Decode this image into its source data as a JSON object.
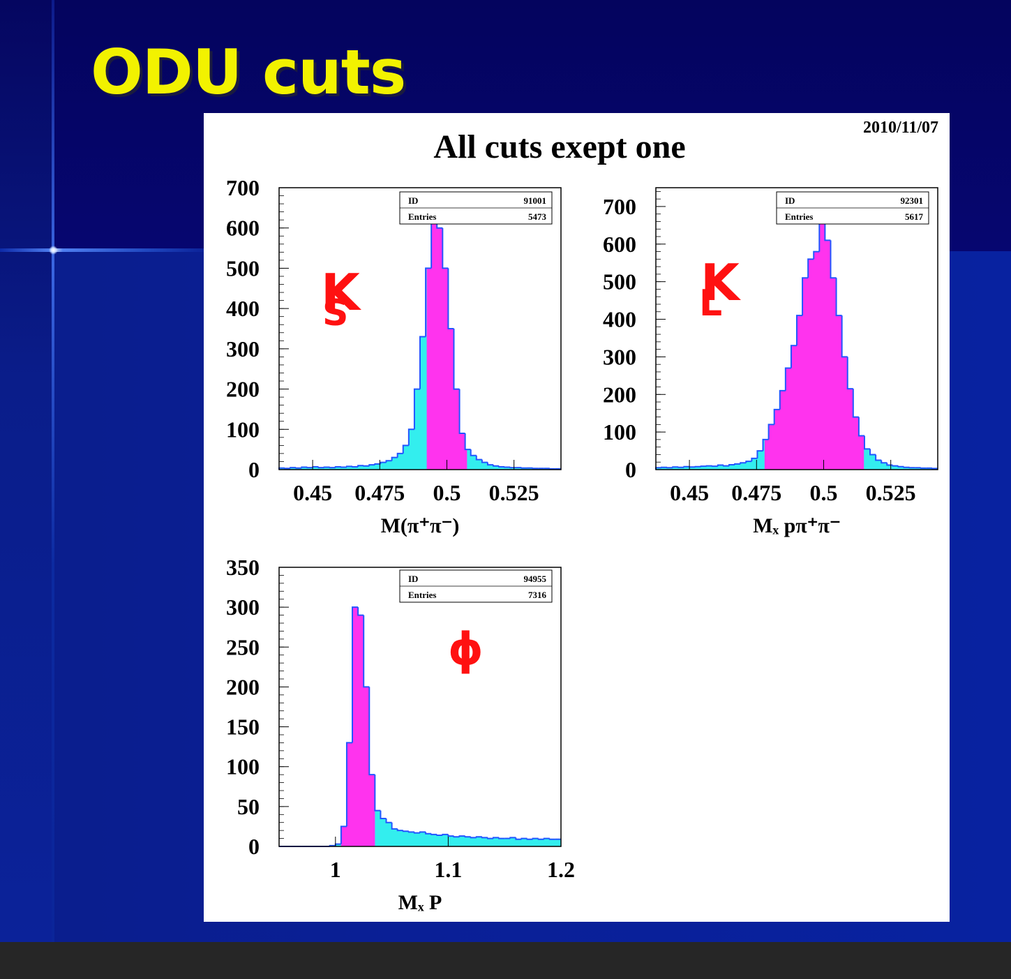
{
  "slide": {
    "title": "ODU cuts"
  },
  "panel": {
    "title": "All cuts exept one",
    "date": "2010/11/07"
  },
  "colors": {
    "background": "#0a1f96",
    "title": "#f2f200",
    "fill_selected": "#ff33ee",
    "fill_all": "#33eeee",
    "line": "#2255ff",
    "annotation": "#ff1111"
  },
  "chart_data": [
    {
      "type": "bar",
      "id": "91001",
      "entries": "5473",
      "annotation": "K",
      "annotation_sub": "S",
      "xlabel": "M(π⁺π⁻)",
      "xlim": [
        0.4375,
        0.5425
      ],
      "ylim": [
        0,
        700
      ],
      "xticks": [
        0.45,
        0.475,
        0.5,
        0.525
      ],
      "xtick_labels": [
        "0.45",
        "0.475",
        "0.5",
        "0.525"
      ],
      "yticks": [
        0,
        100,
        200,
        300,
        400,
        500,
        600,
        700
      ],
      "ytick_labels": [
        "0",
        "100",
        "200",
        "300",
        "400",
        "500",
        "600",
        "700"
      ],
      "bin_width": 0.0021,
      "cut": [
        0.4925,
        0.5075
      ],
      "x": [
        0.4375,
        0.4396,
        0.4417,
        0.4438,
        0.4459,
        0.448,
        0.4501,
        0.4522,
        0.4543,
        0.4564,
        0.4585,
        0.4606,
        0.4627,
        0.4648,
        0.4669,
        0.469,
        0.4711,
        0.4732,
        0.4753,
        0.4774,
        0.4795,
        0.4816,
        0.4837,
        0.4858,
        0.4879,
        0.49,
        0.4921,
        0.4942,
        0.4963,
        0.4984,
        0.5005,
        0.5026,
        0.5047,
        0.5068,
        0.5089,
        0.511,
        0.5131,
        0.5152,
        0.5173,
        0.5194,
        0.5215,
        0.5236,
        0.5257,
        0.5278,
        0.5299,
        0.532,
        0.5341,
        0.5362,
        0.5383,
        0.5404
      ],
      "values": [
        4,
        3,
        5,
        4,
        6,
        5,
        7,
        5,
        6,
        5,
        7,
        6,
        8,
        7,
        10,
        9,
        12,
        14,
        18,
        22,
        30,
        40,
        60,
        100,
        200,
        330,
        500,
        620,
        600,
        500,
        350,
        200,
        90,
        50,
        35,
        25,
        18,
        12,
        9,
        7,
        6,
        5,
        5,
        4,
        4,
        3,
        3,
        3,
        2,
        2
      ]
    },
    {
      "type": "bar",
      "id": "92301",
      "entries": "5617",
      "annotation": "K",
      "annotation_sub": "L",
      "xlabel": "Mₓ pπ⁺π⁻",
      "xlim": [
        0.4375,
        0.5425
      ],
      "ylim": [
        0,
        750
      ],
      "xticks": [
        0.45,
        0.475,
        0.5,
        0.525
      ],
      "xtick_labels": [
        "0.45",
        "0.475",
        "0.5",
        "0.525"
      ],
      "yticks": [
        0,
        100,
        200,
        300,
        400,
        500,
        600,
        700
      ],
      "ytick_labels": [
        "0",
        "100",
        "200",
        "300",
        "400",
        "500",
        "600",
        "700"
      ],
      "bin_width": 0.0021,
      "cut": [
        0.478,
        0.515
      ],
      "x": [
        0.4375,
        0.4396,
        0.4417,
        0.4438,
        0.4459,
        0.448,
        0.4501,
        0.4522,
        0.4543,
        0.4564,
        0.4585,
        0.4606,
        0.4627,
        0.4648,
        0.4669,
        0.469,
        0.4711,
        0.4732,
        0.4753,
        0.4774,
        0.4795,
        0.4816,
        0.4837,
        0.4858,
        0.4879,
        0.49,
        0.4921,
        0.4942,
        0.4963,
        0.4984,
        0.5005,
        0.5026,
        0.5047,
        0.5068,
        0.5089,
        0.511,
        0.5131,
        0.5152,
        0.5173,
        0.5194,
        0.5215,
        0.5236,
        0.5257,
        0.5278,
        0.5299,
        0.532,
        0.5341,
        0.5362,
        0.5383,
        0.5404
      ],
      "values": [
        5,
        6,
        5,
        7,
        6,
        8,
        7,
        8,
        9,
        10,
        9,
        12,
        10,
        13,
        15,
        18,
        22,
        30,
        50,
        80,
        120,
        160,
        210,
        270,
        330,
        410,
        510,
        560,
        580,
        680,
        610,
        510,
        410,
        300,
        215,
        140,
        90,
        55,
        40,
        25,
        18,
        12,
        10,
        8,
        6,
        5,
        5,
        4,
        4,
        3
      ]
    },
    {
      "type": "bar",
      "id": "94955",
      "entries": "7316",
      "annotation": "ϕ",
      "xlabel": "Mₓ  P",
      "xlim": [
        0.95,
        1.2
      ],
      "ylim": [
        0,
        350
      ],
      "xticks": [
        1,
        1.1,
        1.2
      ],
      "xtick_labels": [
        "1",
        "1.1",
        "1.2"
      ],
      "yticks": [
        0,
        50,
        100,
        150,
        200,
        250,
        300,
        350
      ],
      "ytick_labels": [
        "0",
        "50",
        "100",
        "150",
        "200",
        "250",
        "300",
        "350"
      ],
      "bin_width": 0.005,
      "cut": [
        1.005,
        1.035
      ],
      "x": [
        0.95,
        0.955,
        0.96,
        0.965,
        0.97,
        0.975,
        0.98,
        0.985,
        0.99,
        0.995,
        1.0,
        1.005,
        1.01,
        1.015,
        1.02,
        1.025,
        1.03,
        1.035,
        1.04,
        1.045,
        1.05,
        1.055,
        1.06,
        1.065,
        1.07,
        1.075,
        1.08,
        1.085,
        1.09,
        1.095,
        1.1,
        1.105,
        1.11,
        1.115,
        1.12,
        1.125,
        1.13,
        1.135,
        1.14,
        1.145,
        1.15,
        1.155,
        1.16,
        1.165,
        1.17,
        1.175,
        1.18,
        1.185,
        1.19,
        1.195
      ],
      "values": [
        0,
        0,
        0,
        0,
        0,
        0,
        0,
        0,
        0,
        1,
        3,
        25,
        130,
        300,
        290,
        200,
        90,
        45,
        35,
        30,
        22,
        20,
        19,
        18,
        17,
        18,
        16,
        15,
        14,
        15,
        13,
        12,
        13,
        12,
        11,
        12,
        11,
        10,
        11,
        10,
        10,
        11,
        9,
        10,
        9,
        10,
        9,
        10,
        9,
        9
      ]
    }
  ]
}
